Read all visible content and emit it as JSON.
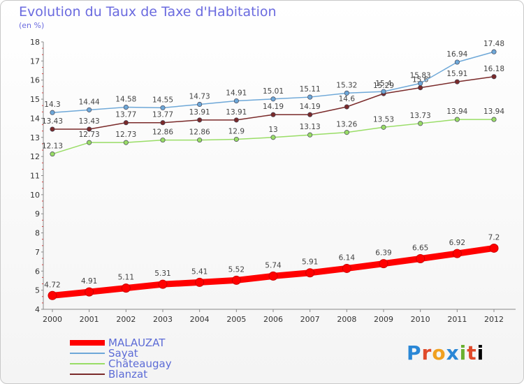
{
  "header": {
    "title": "Evolution du Taux de Taxe d'Habitation",
    "subtitle": "(en %)"
  },
  "logo": [
    "P",
    "r",
    "o",
    "x",
    "i",
    "t",
    "i"
  ],
  "chart_data": {
    "type": "line",
    "title": "Evolution du Taux de Taxe d'Habitation",
    "ylabel": "(en %)",
    "xlabel": "",
    "ylim": [
      4,
      18
    ],
    "yticks": [
      "4",
      "5",
      "6",
      "7",
      "8",
      "9",
      "10",
      "11",
      "12",
      "13",
      "14",
      "15",
      "16",
      "17",
      "18"
    ],
    "x": [
      "2000",
      "2001",
      "2002",
      "2003",
      "2004",
      "2005",
      "2006",
      "2007",
      "2008",
      "2009",
      "2010",
      "2011",
      "2012"
    ],
    "grid": false,
    "legend_position": "bottom-left",
    "series": [
      {
        "name": "MALAUZAT",
        "color": "#ff0000",
        "values": [
          4.72,
          4.91,
          5.11,
          5.31,
          5.41,
          5.52,
          5.74,
          5.91,
          6.14,
          6.39,
          6.65,
          6.92,
          7.2
        ],
        "labels": [
          "4.72",
          "4.91",
          "5.11",
          "5.31",
          "5.41",
          "5.52",
          "5.74",
          "5.91",
          "6.14",
          "6.39",
          "6.65",
          "6.92",
          "7.2"
        ]
      },
      {
        "name": "Sayat",
        "color": "#6ea8d8",
        "values": [
          14.3,
          14.44,
          14.58,
          14.55,
          14.73,
          14.91,
          15.01,
          15.11,
          15.32,
          15.4,
          15.83,
          16.94,
          17.48
        ],
        "labels": [
          "14.3",
          "14.44",
          "14.58",
          "14.55",
          "14.73",
          "14.91",
          "15.01",
          "15.11",
          "15.32",
          "15.4",
          "15.83",
          "16.94",
          "17.48"
        ]
      },
      {
        "name": "Châteaugay",
        "color": "#99dd66",
        "values": [
          12.13,
          12.73,
          12.73,
          12.86,
          12.86,
          12.9,
          13,
          13.13,
          13.26,
          13.53,
          13.73,
          13.94,
          13.94
        ],
        "labels": [
          "12.13",
          "12.73",
          "12.73",
          "12.86",
          "12.86",
          "12.9",
          "13",
          "13.13",
          "13.26",
          "13.53",
          "13.73",
          "13.94",
          "13.94"
        ]
      },
      {
        "name": "Blanzat",
        "color": "#7a2a2a",
        "values": [
          13.43,
          13.43,
          13.77,
          13.77,
          13.91,
          13.91,
          14.19,
          14.19,
          14.6,
          15.29,
          15.6,
          15.91,
          16.18
        ],
        "labels": [
          "13.43",
          "13.43",
          "13.77",
          "13.77",
          "13.91",
          "13.91",
          "14.19",
          "14.19",
          "14.6",
          "15.29",
          "15.6",
          "15.91",
          "16.18"
        ]
      }
    ]
  }
}
